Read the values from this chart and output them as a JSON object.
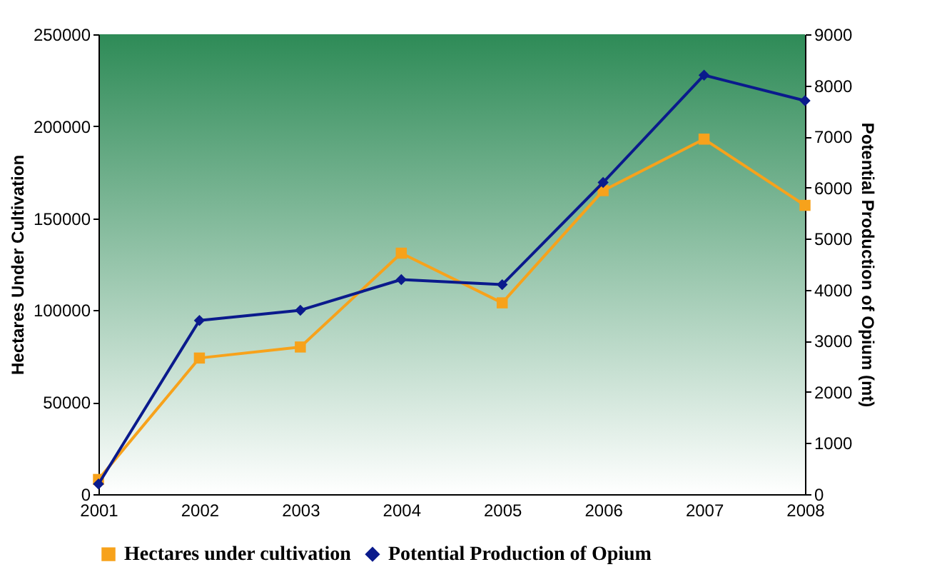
{
  "chart_data": {
    "type": "line",
    "categories": [
      "2001",
      "2002",
      "2003",
      "2004",
      "2005",
      "2006",
      "2007",
      "2008"
    ],
    "ylabel": "Hectares Under Cultivation",
    "y2label": "Potential Production of Opium (mt)",
    "series": [
      {
        "name": "Hectares under cultivation",
        "color": "#f7a21b",
        "marker": "square",
        "values": [
          8000,
          74000,
          80000,
          131000,
          104000,
          165000,
          193000,
          157000
        ]
      },
      {
        "name": "Potential Production of Opium",
        "color": "#0a1a8c",
        "marker": "diamond",
        "axis": "y2",
        "values": [
          200,
          3400,
          3600,
          4200,
          4100,
          6100,
          8200,
          7700
        ]
      }
    ],
    "ylim": [
      0,
      250000
    ],
    "yticks": [
      0,
      50000,
      100000,
      150000,
      200000,
      250000
    ],
    "y2lim": [
      0,
      9000
    ],
    "y2ticks": [
      0,
      1000,
      2000,
      3000,
      4000,
      5000,
      6000,
      7000,
      8000,
      9000
    ],
    "grid": false,
    "legend": "bottom"
  }
}
